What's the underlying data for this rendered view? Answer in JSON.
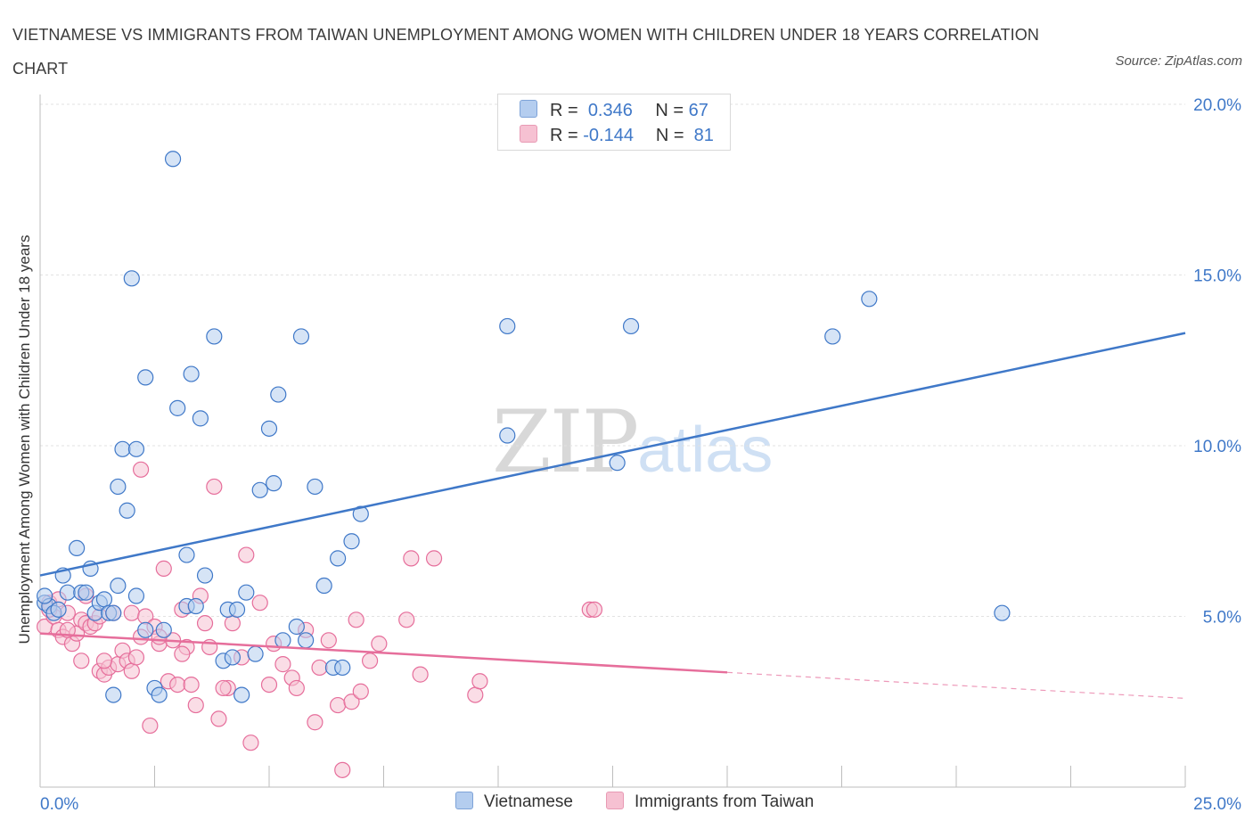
{
  "title": "VIETNAMESE VS IMMIGRANTS FROM TAIWAN UNEMPLOYMENT AMONG WOMEN WITH CHILDREN UNDER 18 YEARS CORRELATION CHART",
  "source": "Source: ZipAtlas.com",
  "watermark": {
    "zip": "ZIP",
    "atlas": "atlas"
  },
  "legend": {
    "r_label": "R =",
    "n_label": "N =",
    "vietnamese": {
      "r": "0.346",
      "n": "67"
    },
    "taiwan": {
      "r": "-0.144",
      "n": "81"
    }
  },
  "bottom_legend": {
    "vietnamese": "Vietnamese",
    "taiwan": "Immigrants from Taiwan"
  },
  "chart_data": {
    "type": "scatter",
    "title": "VIETNAMESE VS IMMIGRANTS FROM TAIWAN UNEMPLOYMENT AMONG WOMEN WITH CHILDREN UNDER 18 YEARS CORRELATION CHART",
    "xlabel": "",
    "ylabel": "Unemployment Among Women with Children Under 18 years",
    "xlim": [
      0,
      25
    ],
    "ylim": [
      0,
      20
    ],
    "x_tick_labels": [
      "0.0%",
      "25.0%"
    ],
    "y_tick_values": [
      5,
      10,
      15,
      20
    ],
    "y_tick_labels": [
      "5.0%",
      "10.0%",
      "15.0%",
      "20.0%"
    ],
    "grid": "horizontal dashed",
    "legend_position": "top-center",
    "colors": {
      "vietnamese": "#3f78c8",
      "taiwan": "#e66e9b",
      "vietnamese_fill": "#b4cdef",
      "taiwan_fill": "#f6c1d2",
      "tick_label": "#3f78c8"
    },
    "series": [
      {
        "name": "Vietnamese",
        "r": 0.346,
        "n": 67,
        "trend": {
          "x": [
            0,
            25
          ],
          "y": [
            6.2,
            13.3
          ],
          "dashed_from": null
        },
        "points": [
          [
            0.1,
            5.4
          ],
          [
            0.2,
            5.3
          ],
          [
            0.3,
            5.1
          ],
          [
            0.4,
            5.2
          ],
          [
            0.5,
            6.2
          ],
          [
            0.6,
            5.7
          ],
          [
            0.8,
            7.0
          ],
          [
            0.9,
            5.7
          ],
          [
            1.0,
            5.7
          ],
          [
            1.1,
            6.4
          ],
          [
            1.2,
            5.1
          ],
          [
            1.3,
            5.4
          ],
          [
            1.4,
            5.5
          ],
          [
            1.5,
            5.1
          ],
          [
            1.6,
            5.1
          ],
          [
            1.6,
            2.7
          ],
          [
            1.7,
            5.9
          ],
          [
            1.7,
            8.8
          ],
          [
            1.8,
            9.9
          ],
          [
            1.9,
            8.1
          ],
          [
            2.0,
            14.9
          ],
          [
            2.1,
            5.6
          ],
          [
            2.1,
            9.9
          ],
          [
            2.3,
            4.6
          ],
          [
            2.3,
            12.0
          ],
          [
            2.5,
            2.9
          ],
          [
            2.6,
            2.7
          ],
          [
            2.7,
            4.6
          ],
          [
            2.9,
            18.4
          ],
          [
            3.0,
            11.1
          ],
          [
            3.2,
            6.8
          ],
          [
            3.2,
            5.3
          ],
          [
            3.3,
            12.1
          ],
          [
            3.4,
            5.3
          ],
          [
            3.5,
            10.8
          ],
          [
            3.6,
            6.2
          ],
          [
            3.8,
            13.2
          ],
          [
            4.0,
            3.7
          ],
          [
            4.1,
            5.2
          ],
          [
            4.2,
            3.8
          ],
          [
            4.3,
            5.2
          ],
          [
            4.4,
            2.7
          ],
          [
            4.5,
            5.7
          ],
          [
            4.7,
            3.9
          ],
          [
            4.8,
            8.7
          ],
          [
            5.0,
            10.5
          ],
          [
            5.1,
            8.9
          ],
          [
            5.2,
            11.5
          ],
          [
            5.3,
            4.3
          ],
          [
            5.6,
            4.7
          ],
          [
            5.7,
            13.2
          ],
          [
            5.8,
            4.3
          ],
          [
            6.0,
            8.8
          ],
          [
            6.2,
            5.9
          ],
          [
            6.4,
            3.5
          ],
          [
            6.5,
            6.7
          ],
          [
            6.6,
            3.5
          ],
          [
            6.8,
            7.2
          ],
          [
            7.0,
            8.0
          ],
          [
            10.2,
            13.5
          ],
          [
            10.2,
            10.3
          ],
          [
            12.6,
            9.5
          ],
          [
            12.9,
            13.5
          ],
          [
            17.3,
            13.2
          ],
          [
            18.1,
            14.3
          ],
          [
            21.0,
            5.1
          ],
          [
            0.1,
            5.6
          ]
        ]
      },
      {
        "name": "Immigrants from Taiwan",
        "r": -0.144,
        "n": 81,
        "trend": {
          "x": [
            0,
            25
          ],
          "y": [
            4.5,
            2.6
          ],
          "dashed_from": 15
        },
        "points": [
          [
            0.1,
            4.7
          ],
          [
            0.2,
            5.4
          ],
          [
            0.3,
            5.0
          ],
          [
            0.4,
            4.6
          ],
          [
            0.5,
            4.4
          ],
          [
            0.6,
            5.1
          ],
          [
            0.7,
            4.2
          ],
          [
            0.8,
            4.5
          ],
          [
            0.9,
            4.9
          ],
          [
            0.9,
            3.7
          ],
          [
            1.0,
            4.8
          ],
          [
            1.1,
            4.7
          ],
          [
            1.2,
            4.8
          ],
          [
            1.3,
            5.0
          ],
          [
            1.3,
            3.4
          ],
          [
            1.4,
            3.3
          ],
          [
            1.5,
            3.5
          ],
          [
            1.6,
            5.1
          ],
          [
            1.7,
            3.6
          ],
          [
            1.8,
            4.0
          ],
          [
            1.9,
            3.7
          ],
          [
            2.0,
            3.4
          ],
          [
            2.0,
            5.1
          ],
          [
            2.1,
            3.8
          ],
          [
            2.2,
            9.3
          ],
          [
            2.2,
            4.4
          ],
          [
            2.3,
            5.0
          ],
          [
            2.4,
            1.8
          ],
          [
            2.5,
            4.7
          ],
          [
            2.6,
            4.2
          ],
          [
            2.7,
            6.4
          ],
          [
            2.8,
            3.1
          ],
          [
            2.9,
            4.3
          ],
          [
            3.0,
            3.0
          ],
          [
            3.1,
            5.2
          ],
          [
            3.2,
            4.1
          ],
          [
            3.3,
            3.0
          ],
          [
            3.4,
            2.4
          ],
          [
            3.5,
            5.6
          ],
          [
            3.6,
            4.8
          ],
          [
            3.7,
            4.1
          ],
          [
            3.8,
            8.8
          ],
          [
            3.9,
            2.0
          ],
          [
            4.1,
            2.9
          ],
          [
            4.2,
            4.8
          ],
          [
            4.4,
            3.8
          ],
          [
            4.5,
            6.8
          ],
          [
            4.6,
            1.3
          ],
          [
            4.8,
            5.4
          ],
          [
            5.0,
            3.0
          ],
          [
            5.1,
            4.2
          ],
          [
            5.3,
            3.6
          ],
          [
            5.5,
            3.2
          ],
          [
            5.8,
            4.6
          ],
          [
            6.0,
            1.9
          ],
          [
            6.3,
            4.3
          ],
          [
            6.5,
            2.4
          ],
          [
            6.6,
            0.5
          ],
          [
            6.8,
            2.5
          ],
          [
            6.9,
            4.9
          ],
          [
            7.0,
            2.8
          ],
          [
            7.2,
            3.7
          ],
          [
            7.4,
            4.2
          ],
          [
            8.0,
            4.9
          ],
          [
            8.1,
            6.7
          ],
          [
            8.3,
            3.3
          ],
          [
            8.6,
            6.7
          ],
          [
            9.5,
            2.7
          ],
          [
            9.6,
            3.1
          ],
          [
            12.0,
            5.2
          ],
          [
            12.1,
            5.2
          ],
          [
            0.2,
            5.2
          ],
          [
            0.4,
            5.5
          ],
          [
            0.6,
            4.6
          ],
          [
            1.0,
            5.6
          ],
          [
            1.4,
            3.7
          ],
          [
            2.6,
            4.4
          ],
          [
            3.1,
            3.9
          ],
          [
            4.0,
            2.9
          ],
          [
            5.6,
            2.9
          ],
          [
            6.1,
            3.5
          ]
        ]
      }
    ]
  }
}
